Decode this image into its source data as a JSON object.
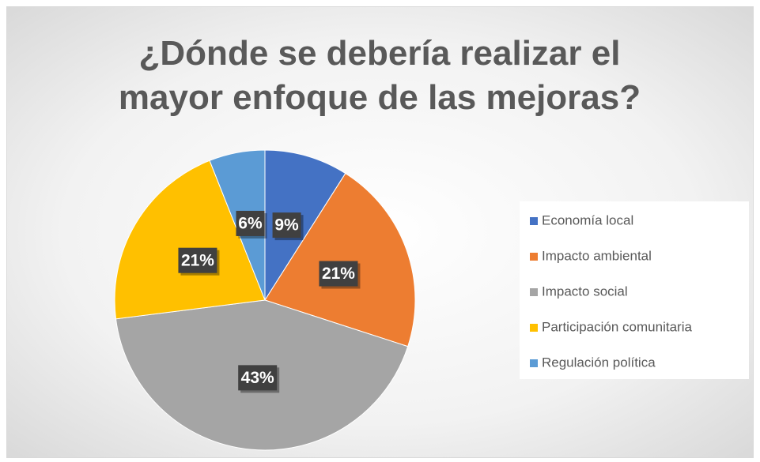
{
  "chart_data": {
    "type": "pie",
    "title": "¿Dónde se debería realizar el mayor enfoque de las mejoras?",
    "categories": [
      "Economía local",
      "Impacto ambiental",
      "Impacto social",
      "Participación comunitaria",
      "Regulación política"
    ],
    "values": [
      9,
      21,
      43,
      21,
      6
    ],
    "value_labels": [
      "9%",
      "21%",
      "43%",
      "21%",
      "6%"
    ],
    "colors": [
      "#4472c4",
      "#ed7d31",
      "#a5a5a5",
      "#ffc000",
      "#5b9bd5"
    ],
    "legend": "right"
  }
}
